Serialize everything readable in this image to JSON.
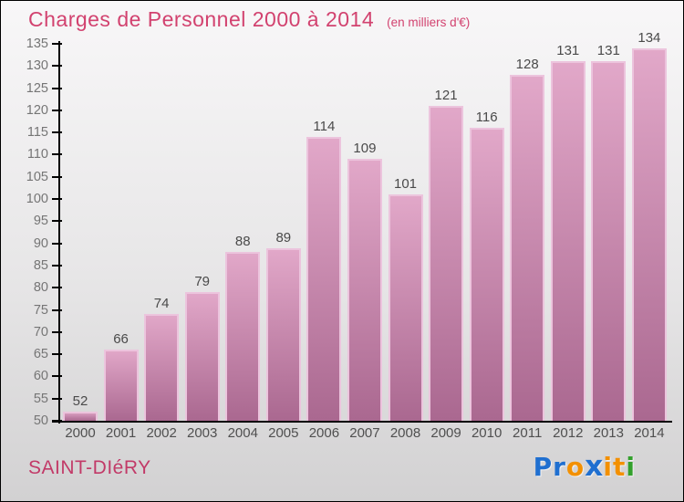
{
  "header": {
    "title": "Charges de Personnel 2000 à 2014",
    "subtitle": "(en milliers d'€)"
  },
  "chart_data": {
    "type": "bar",
    "title": "Charges de Personnel 2000 à 2014",
    "subtitle": "(en milliers d'€)",
    "categories": [
      "2000",
      "2001",
      "2002",
      "2003",
      "2004",
      "2005",
      "2006",
      "2007",
      "2008",
      "2009",
      "2010",
      "2011",
      "2012",
      "2013",
      "2014"
    ],
    "values": [
      52,
      66,
      74,
      79,
      88,
      89,
      114,
      109,
      101,
      121,
      116,
      128,
      131,
      131,
      134
    ],
    "xlabel": "",
    "ylabel": "",
    "ylim": [
      50,
      135
    ],
    "ytick_step": 5,
    "yticks": [
      50,
      55,
      60,
      65,
      70,
      75,
      80,
      85,
      90,
      95,
      100,
      105,
      110,
      115,
      120,
      125,
      130,
      135
    ],
    "grid": false,
    "legend": null,
    "value_labels_shown": true
  },
  "footer": {
    "location": "SAINT-DIéRY",
    "logo": {
      "name": "Proxiti",
      "letters": [
        {
          "char": "P",
          "color": "#1f6fd0",
          "accent": false
        },
        {
          "char": "r",
          "color": "#1f6fd0",
          "accent": false
        },
        {
          "char": "o",
          "color": "#f39000",
          "accent": false
        },
        {
          "char": "x",
          "color": "#1f6fd0",
          "accent": true
        },
        {
          "char": "i",
          "color": "#f39000",
          "accent": false
        },
        {
          "char": "t",
          "color": "#f39000",
          "accent": false
        },
        {
          "char": "i",
          "color": "#33a02c",
          "accent": false
        }
      ]
    }
  },
  "colors": {
    "title": "#d2426f",
    "location": "#c23a68",
    "axis": "#000000",
    "tick_label": "#757575",
    "year_label": "#4f4f4f",
    "value_label": "#4a4a4a",
    "bg_top": "#f8f7f8",
    "bg_mid": "#e7e6e7",
    "bg_bottom": "#d2d1d2",
    "bar_top": "#e2a8c9",
    "bar_bottom": "#aa6890",
    "bar_edge": "#ecc4dd"
  }
}
